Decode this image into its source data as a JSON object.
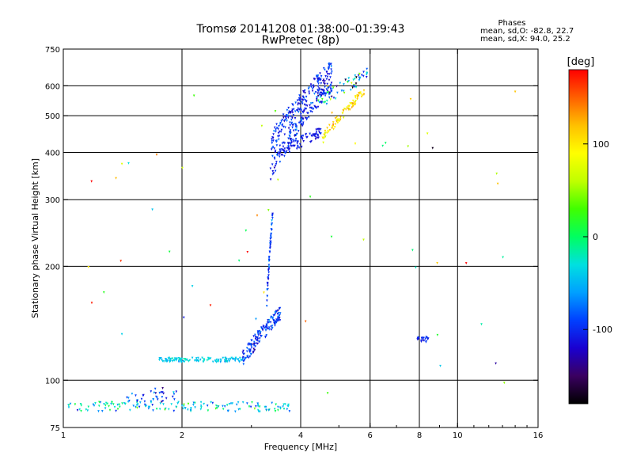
{
  "header": {
    "title_line1": "Tromsø 20141208 01:38:00–01:39:43",
    "title_line2": "RwPretec (8p)",
    "stats_title": "Phases",
    "stats_o": "mean, sd,O: -82.8, 22.7",
    "stats_x": "mean, sd,X:  94.0, 25.2"
  },
  "colorbar": {
    "unit": "[deg]",
    "range": [
      -180,
      180
    ],
    "ticks": [
      100,
      0,
      -100
    ],
    "tick_labels": [
      "100",
      "0",
      "-100"
    ],
    "stops": [
      "#000000",
      "#3a0060",
      "#1a00d0",
      "#0040ff",
      "#00a0ff",
      "#00e0e0",
      "#00ff60",
      "#40ff00",
      "#c0ff00",
      "#ffff00",
      "#ffc000",
      "#ff6000",
      "#ff0000"
    ]
  },
  "chart_data": {
    "type": "scatter",
    "title": "Tromsø 20141208 01:38:00–01:39:43",
    "subtitle": "RwPretec (8p)",
    "xlabel": "Frequency [MHz]",
    "ylabel": "Stationary phase Virtual Height [km]",
    "x_scale": "log",
    "y_scale": "log",
    "xlim": [
      1,
      16
    ],
    "ylim": [
      75,
      750
    ],
    "x_ticks": [
      1,
      2,
      4,
      6,
      8,
      10,
      16
    ],
    "x_tick_labels": [
      "1",
      "2",
      "4",
      "6",
      "8",
      "10",
      "16"
    ],
    "x_grid": [
      2,
      4,
      6,
      8,
      10
    ],
    "y_ticks": [
      75,
      100,
      200,
      300,
      400,
      500,
      600,
      750
    ],
    "y_tick_labels": [
      "75",
      "100",
      "200",
      "300",
      "400",
      "500",
      "600",
      "750"
    ],
    "y_grid": [
      100,
      200,
      300,
      400,
      500,
      600
    ],
    "grid": true,
    "color_variable": "Phase [deg]",
    "clusters": [
      {
        "kind": "band",
        "f_start": 1.02,
        "f_end": 3.75,
        "h_start": 85,
        "h_end": 85,
        "h_spread": 5,
        "n": 150,
        "phase_mean": -35,
        "phase_sd": 35
      },
      {
        "kind": "band",
        "f_start": 1.45,
        "f_end": 1.95,
        "h_start": 88,
        "h_end": 93,
        "h_spread": 9,
        "n": 40,
        "phase_mean": -95,
        "phase_sd": 25
      },
      {
        "kind": "band",
        "f_start": 1.75,
        "f_end": 2.85,
        "h_start": 113,
        "h_end": 113,
        "h_spread": 3,
        "n": 120,
        "phase_mean": -40,
        "phase_sd": 12
      },
      {
        "kind": "band",
        "f_start": 2.85,
        "f_end": 3.55,
        "h_start": 114,
        "h_end": 150,
        "h_spread": 12,
        "n": 150,
        "phase_mean": -95,
        "phase_sd": 18
      },
      {
        "kind": "band",
        "f_start": 3.28,
        "f_end": 3.4,
        "h_start": 160,
        "h_end": 275,
        "h_spread": 15,
        "n": 55,
        "phase_mean": -90,
        "phase_sd": 15
      },
      {
        "kind": "band",
        "f_start": 3.35,
        "f_end": 4.8,
        "h_start": 390,
        "h_end": 640,
        "h_spread": 120,
        "n": 340,
        "phase_mean": -100,
        "phase_sd": 16
      },
      {
        "kind": "band",
        "f_start": 3.5,
        "f_end": 4.5,
        "h_start": 400,
        "h_end": 450,
        "h_spread": 30,
        "n": 80,
        "phase_mean": -110,
        "phase_sd": 10
      },
      {
        "kind": "band",
        "f_start": 4.5,
        "f_end": 5.8,
        "h_start": 430,
        "h_end": 580,
        "h_spread": 30,
        "n": 85,
        "phase_mean": 105,
        "phase_sd": 20
      },
      {
        "kind": "band",
        "f_start": 4.4,
        "f_end": 5.9,
        "h_start": 540,
        "h_end": 640,
        "h_spread": 50,
        "n": 60,
        "phase_mean": -60,
        "phase_sd": 60
      },
      {
        "kind": "band",
        "f_start": 7.85,
        "f_end": 8.45,
        "h_start": 128,
        "h_end": 128,
        "h_spread": 4,
        "n": 22,
        "phase_mean": -105,
        "phase_sd": 10
      },
      {
        "kind": "band",
        "f_start": 1.1,
        "f_end": 14,
        "h_start": 90,
        "h_end": 600,
        "h_spread": 0,
        "n": 55,
        "phase_mean": 40,
        "phase_sd": 90
      }
    ]
  }
}
